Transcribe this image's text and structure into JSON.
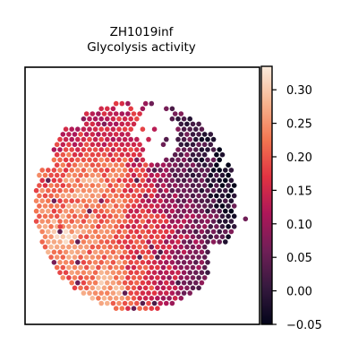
{
  "chart_data": {
    "type": "scatter",
    "title": "ZH1019inf",
    "subtitle": "Glycolysis activity",
    "xlabel": "",
    "ylabel": "",
    "grid": false,
    "legend": "colorbar-right",
    "colorbar": {
      "colormap": "rocket",
      "min": -0.05,
      "max": 0.335,
      "ticks": [
        -0.05,
        0.0,
        0.05,
        0.1,
        0.15,
        0.2,
        0.25,
        0.3
      ],
      "tick_labels": [
        "−0.05",
        "0.00",
        "0.05",
        "0.10",
        "0.15",
        "0.20",
        "0.25",
        "0.30"
      ],
      "stops": [
        "#03051a",
        "#35193e",
        "#701f57",
        "#ad1759",
        "#e13342",
        "#f37651",
        "#f6b48f",
        "#faebdd"
      ]
    },
    "marker_color_na": "#7a1f5a",
    "outlier_spots": [
      {
        "x": 0.94,
        "y": 0.59,
        "value": 0.06
      },
      {
        "x": 0.15,
        "y": 0.62,
        "value": 0.18
      }
    ]
  }
}
